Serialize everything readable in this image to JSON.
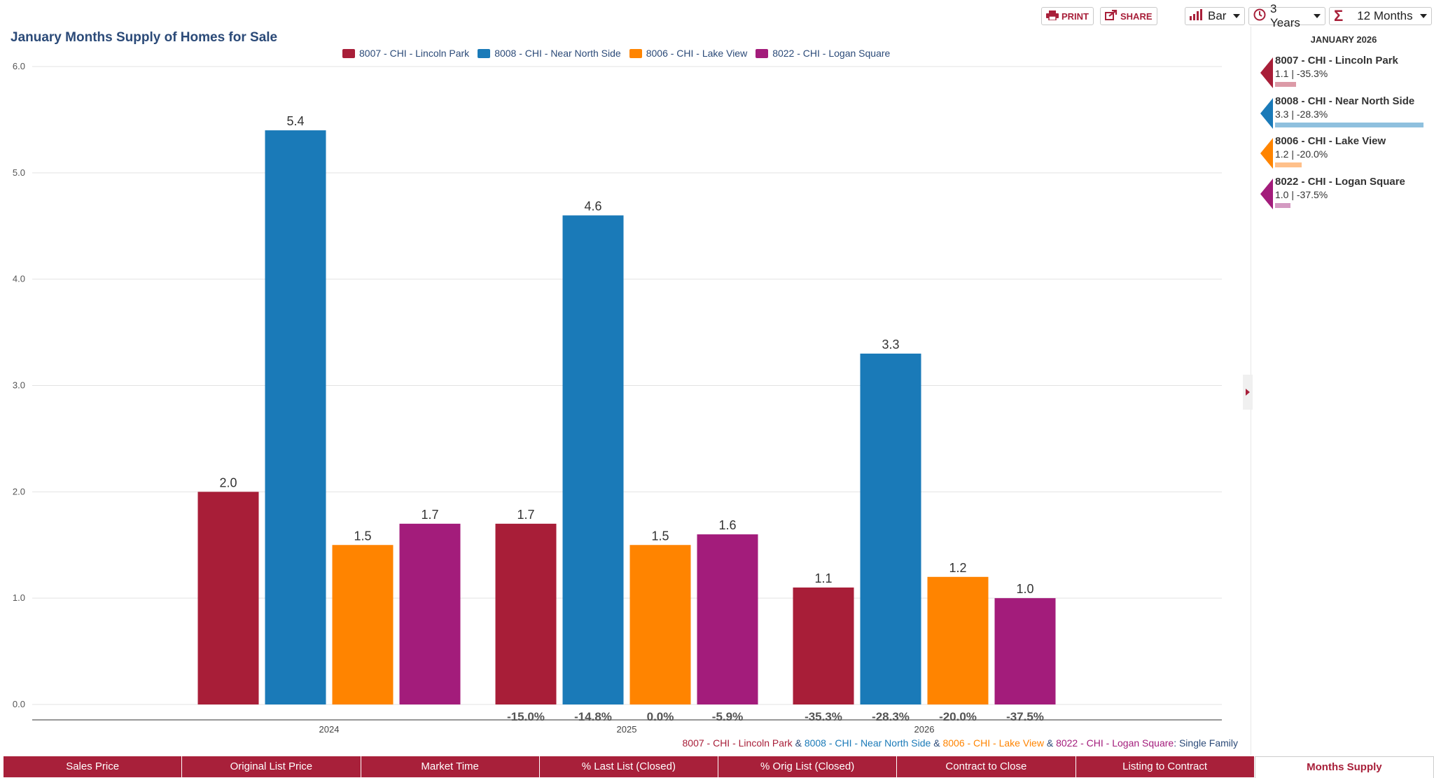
{
  "toolbar": {
    "print_label": "PRINT",
    "share_label": "SHARE",
    "chart_type": "Bar",
    "range": "3 Years",
    "period": "12 Months"
  },
  "colors": {
    "lincoln_park": "#a81e38",
    "near_north": "#1a7ab8",
    "lake_view": "#ff8400",
    "logan_square": "#a31c7b",
    "title": "#2b4a78",
    "accent": "#a8203a"
  },
  "chart_data": {
    "type": "bar",
    "title": "January Months Supply of Homes for Sale",
    "categories": [
      "2024",
      "2025",
      "2026"
    ],
    "series": [
      {
        "name": "8007 - CHI - Lincoln Park",
        "values": [
          2.0,
          1.7,
          1.1
        ],
        "changes": [
          "",
          "-15.0%",
          "-35.3%"
        ]
      },
      {
        "name": "8008 - CHI - Near North Side",
        "values": [
          5.4,
          4.6,
          3.3
        ],
        "changes": [
          "",
          "-14.8%",
          "-28.3%"
        ]
      },
      {
        "name": "8006 - CHI - Lake View",
        "values": [
          1.5,
          1.5,
          1.2
        ],
        "changes": [
          "",
          "0.0%",
          "-20.0%"
        ]
      },
      {
        "name": "8022 - CHI - Logan Square",
        "values": [
          1.7,
          1.6,
          1.0
        ],
        "changes": [
          "",
          "-5.9%",
          "-37.5%"
        ]
      }
    ],
    "ylim": [
      0,
      6
    ],
    "yticks": [
      "0.0",
      "1.0",
      "2.0",
      "3.0",
      "4.0",
      "5.0",
      "6.0"
    ],
    "xlabel": "",
    "ylabel": "",
    "grid": true
  },
  "sidebar": {
    "title": "JANUARY 2026",
    "entries": [
      {
        "name": "8007 - CHI - Lincoln Park",
        "value": "1.1 | -35.3%"
      },
      {
        "name": "8008 - CHI - Near North Side",
        "value": "3.3 | -28.3%"
      },
      {
        "name": "8006 - CHI - Lake View",
        "value": "1.2 | -20.0%"
      },
      {
        "name": "8022 - CHI - Logan Square",
        "value": "1.0 | -37.5%"
      }
    ]
  },
  "footnote": {
    "a": "8007 - CHI - Lincoln Park",
    "amp": " & ",
    "b": "8008 - CHI - Near North Side",
    "c": "8006 - CHI - Lake View",
    "d": "8022 - CHI - Logan Square",
    "suffix": ": Single Family"
  },
  "tabs": [
    "Sales Price",
    "Original List Price",
    "Market Time",
    "% Last List (Closed)",
    "% Orig List (Closed)",
    "Contract to Close",
    "Listing to Contract",
    "Months Supply"
  ]
}
